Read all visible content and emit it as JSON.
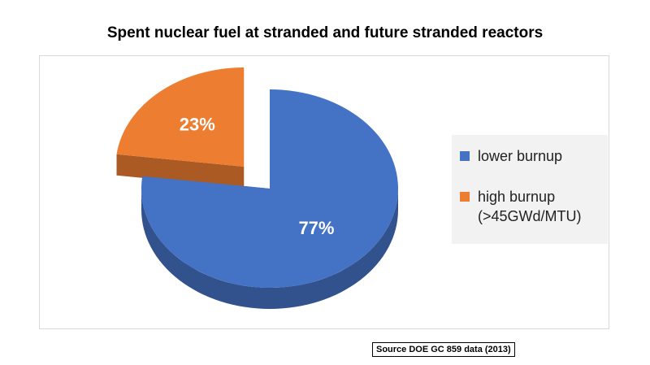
{
  "chart_data": {
    "type": "pie",
    "title": "Spent nuclear fuel at stranded and future stranded reactors",
    "categories": [
      "lower burnup",
      "high burnup (>45GWd/MTU)"
    ],
    "values": [
      77,
      23
    ],
    "value_labels": [
      "77%",
      "23%"
    ],
    "colors": [
      "#4472c4",
      "#ed7d31"
    ],
    "exploded": [
      false,
      true
    ],
    "legend": "right",
    "source": "Source DOE GC 859 data (2013)"
  }
}
